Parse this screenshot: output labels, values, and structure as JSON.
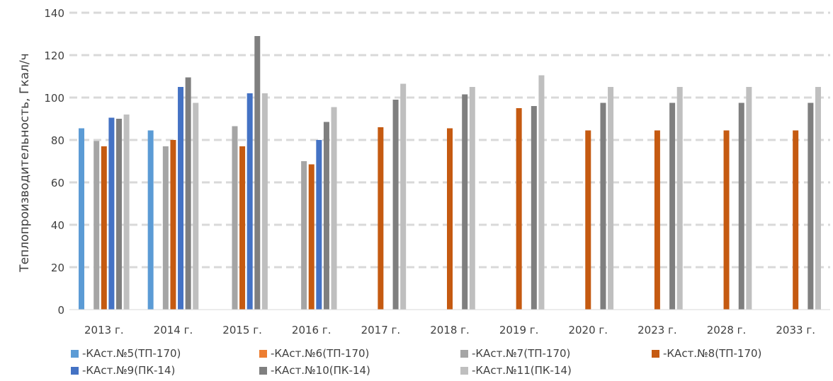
{
  "chart_data": {
    "type": "bar",
    "title": "",
    "xlabel": "",
    "ylabel": "Теплопроизводительность, Гкал/ч",
    "ylim": [
      0,
      140
    ],
    "yticks": [
      0,
      20,
      40,
      60,
      80,
      100,
      120,
      140
    ],
    "grid": true,
    "legend_position": "bottom",
    "categories": [
      "2013 г.",
      "2014 г.",
      "2015 г.",
      "2016 г.",
      "2017 г.",
      "2018 г.",
      "2019 г.",
      "2020 г.",
      "2023 г.",
      "2028 г.",
      "2033 г."
    ],
    "series": [
      {
        "name": "-КАст.№5(ТП-170)",
        "color": "#5b9bd5",
        "values": [
          85.5,
          84.5,
          null,
          null,
          null,
          null,
          null,
          null,
          null,
          null,
          null
        ]
      },
      {
        "name": "-КАст.№6(ТП-170)",
        "color": "#ed7d31",
        "values": [
          null,
          null,
          null,
          null,
          null,
          null,
          null,
          null,
          null,
          null,
          null
        ]
      },
      {
        "name": "-КАст.№7(ТП-170)",
        "color": "#a5a5a5",
        "values": [
          79.5,
          77,
          86.5,
          70,
          null,
          null,
          null,
          null,
          null,
          null,
          null
        ]
      },
      {
        "name": "-КАст.№8(ТП-170)",
        "color": "#c55a11",
        "values": [
          77,
          80,
          77,
          68.5,
          86,
          85.5,
          95,
          84.5,
          84.5,
          84.5,
          84.5
        ]
      },
      {
        "name": "-КАст.№9(ПК-14)",
        "color": "#4472c4",
        "values": [
          90.5,
          105,
          102,
          80,
          null,
          null,
          null,
          null,
          null,
          null,
          null
        ]
      },
      {
        "name": "-КАст.№10(ПК-14)",
        "color": "#7f7f7f",
        "values": [
          90,
          109.5,
          129,
          88.5,
          99,
          101.5,
          96,
          97.5,
          97.5,
          97.5,
          97.5
        ]
      },
      {
        "name": "-КАст.№11(ПК-14)",
        "color": "#bfbfbf",
        "values": [
          92,
          97.5,
          102,
          95.5,
          106.5,
          105,
          110.5,
          105,
          105,
          105,
          105
        ]
      }
    ]
  }
}
